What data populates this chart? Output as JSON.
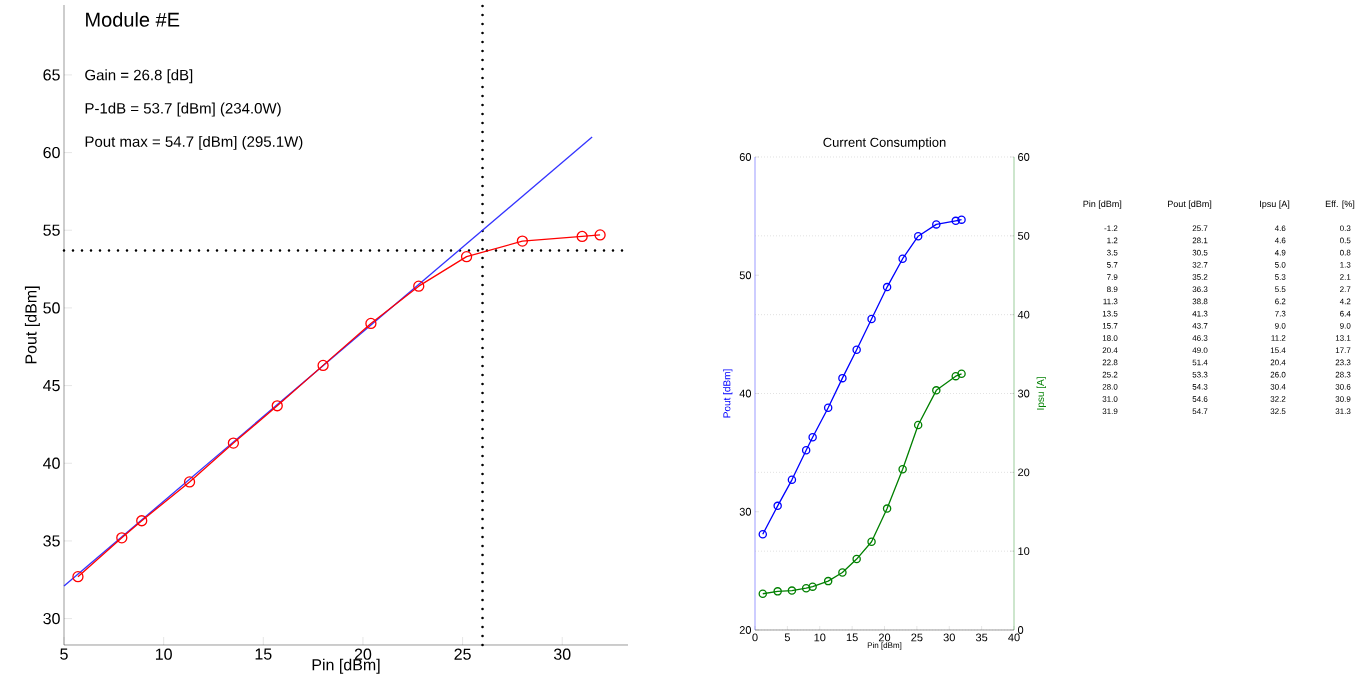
{
  "chart_data": [
    {
      "type": "line",
      "title": "Module #E",
      "xlabel": "Pin [dBm]",
      "ylabel": "Pout [dBm]",
      "annotations": [
        "Gain = 26.8 [dB]",
        "P-1dB = 53.7 [dBm] (234.0W)",
        "Pout max = 54.7 [dBm] (295.1W)"
      ],
      "series": [
        {
          "color": "#3333ff",
          "marker": "none",
          "x": [
            5,
            31.5
          ],
          "values": [
            32.1,
            61.0
          ]
        },
        {
          "color": "#ff0000",
          "marker": "circle",
          "x": [
            5.7,
            7.9,
            8.9,
            11.3,
            13.5,
            15.7,
            18.0,
            20.4,
            22.8,
            25.2,
            28.0,
            31.0,
            31.9
          ],
          "values": [
            32.7,
            35.2,
            36.3,
            38.8,
            41.3,
            43.7,
            46.3,
            49.0,
            51.4,
            53.3,
            54.3,
            54.6,
            54.7
          ]
        }
      ],
      "xlim": [
        5,
        33.3
      ],
      "ylim": [
        28.3,
        69.5
      ],
      "xticks": [
        5,
        10,
        15,
        20,
        25,
        30
      ],
      "yticks": [
        30,
        35,
        40,
        45,
        50,
        55,
        60,
        65
      ],
      "ref_lines": [
        {
          "axis": "x",
          "value": 26.0,
          "line_style": "dotted",
          "color": "#000000"
        },
        {
          "axis": "y",
          "value": 53.7,
          "line_style": "dotted",
          "color": "#000000"
        }
      ]
    },
    {
      "type": "line",
      "title": "Current Consumption",
      "xlabel": "Pin [dBm]",
      "ylabel": "Pout [dBm]",
      "y2label": "Ipsu [A]",
      "x": [
        1.2,
        3.5,
        5.7,
        7.9,
        8.9,
        11.3,
        13.5,
        15.7,
        18.0,
        20.4,
        22.8,
        25.2,
        28.0,
        31.0,
        31.9
      ],
      "series": [
        {
          "color": "#0000ff",
          "values": [
            28.1,
            30.5,
            32.7,
            35.2,
            36.3,
            38.8,
            41.3,
            43.7,
            46.3,
            49.0,
            51.4,
            53.3,
            54.3,
            54.6,
            54.7
          ]
        },
        {
          "color": "#008000",
          "axis": "y2",
          "values": [
            4.6,
            4.9,
            5.0,
            5.3,
            5.5,
            6.2,
            7.3,
            9.0,
            11.2,
            15.4,
            20.4,
            26.0,
            30.4,
            32.2,
            32.5
          ]
        }
      ],
      "marker": "circle",
      "grid": "y",
      "xlim": [
        0,
        40
      ],
      "xticks": [
        0,
        5,
        10,
        15,
        20,
        25,
        30,
        35,
        40
      ],
      "ylim": [
        20,
        60
      ],
      "yticks": [
        20,
        30,
        40,
        50,
        60
      ],
      "y2lim": [
        0,
        60
      ],
      "y2ticks": [
        0,
        10,
        20,
        30,
        40,
        50,
        60
      ]
    },
    {
      "type": "other",
      "categories": [
        "Pin [dBm]",
        "Pout [dBm]",
        "Ipsu [A]",
        "Eff. [%]"
      ],
      "cell_labels": [
        [
          "-1.2",
          "25.7",
          "4.6",
          "0.3"
        ],
        [
          "1.2",
          "28.1",
          "4.6",
          "0.5"
        ],
        [
          "3.5",
          "30.5",
          "4.9",
          "0.8"
        ],
        [
          "5.7",
          "32.7",
          "5.0",
          "1.3"
        ],
        [
          "7.9",
          "35.2",
          "5.3",
          "2.1"
        ],
        [
          "8.9",
          "36.3",
          "5.5",
          "2.7"
        ],
        [
          "11.3",
          "38.8",
          "6.2",
          "4.2"
        ],
        [
          "13.5",
          "41.3",
          "7.3",
          "6.4"
        ],
        [
          "15.7",
          "43.7",
          "9.0",
          "9.0"
        ],
        [
          "18.0",
          "46.3",
          "11.2",
          "13.1"
        ],
        [
          "20.4",
          "49.0",
          "15.4",
          "17.7"
        ],
        [
          "22.8",
          "51.4",
          "20.4",
          "23.3"
        ],
        [
          "25.2",
          "53.3",
          "26.0",
          "28.3"
        ],
        [
          "28.0",
          "54.3",
          "30.4",
          "30.6"
        ],
        [
          "31.0",
          "54.6",
          "32.2",
          "30.9"
        ],
        [
          "31.9",
          "54.7",
          "32.5",
          "31.3"
        ]
      ]
    }
  ]
}
